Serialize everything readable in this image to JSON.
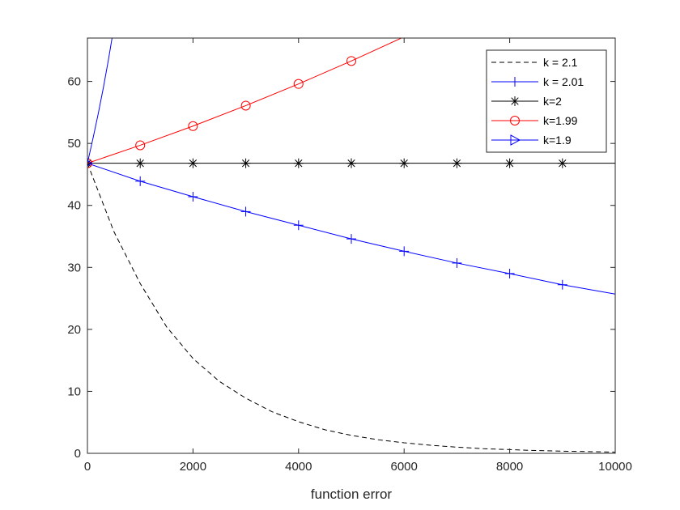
{
  "chart_data": {
    "type": "line",
    "title": "",
    "xlabel": "function error",
    "ylabel": "",
    "xlim": [
      0,
      10000
    ],
    "ylim": [
      0,
      67
    ],
    "xticks": [
      0,
      2000,
      4000,
      6000,
      8000,
      10000
    ],
    "yticks": [
      0,
      10,
      20,
      30,
      40,
      50,
      60
    ],
    "xtick_labels": [
      "0",
      "2000",
      "4000",
      "6000",
      "8000",
      "10000"
    ],
    "ytick_labels": [
      "0",
      "10",
      "20",
      "30",
      "40",
      "50",
      "60"
    ],
    "grid": false,
    "legend_position": "top-right",
    "series": [
      {
        "name": "k = 2.1",
        "color": "#000000",
        "line_style": "dashed",
        "marker": "none",
        "x": [
          0,
          500,
          1000,
          1500,
          2000,
          2500,
          3000,
          3500,
          4000,
          4500,
          5000,
          5500,
          6000,
          6500,
          7000,
          7500,
          8000,
          8500,
          9000,
          9500,
          10000
        ],
        "y": [
          46.8,
          35.8,
          27.4,
          20.4,
          15.3,
          11.6,
          8.9,
          6.7,
          5.1,
          3.8,
          2.9,
          2.2,
          1.7,
          1.3,
          1.0,
          0.75,
          0.6,
          0.45,
          0.35,
          0.28,
          0.2
        ]
      },
      {
        "name": "k = 2.01",
        "color": "#0000ff",
        "line_style": "solid",
        "marker": "plus",
        "marker_x": [
          0,
          1000,
          2000,
          3000,
          4000,
          5000,
          6000,
          7000,
          8000,
          9000
        ],
        "x": [
          0,
          1000,
          2000,
          3000,
          4000,
          5000,
          6000,
          7000,
          8000,
          9000,
          10000
        ],
        "y": [
          46.8,
          43.9,
          41.4,
          39.0,
          36.8,
          34.6,
          32.6,
          30.7,
          29.0,
          27.2,
          25.7
        ]
      },
      {
        "name": "k=2",
        "color": "#000000",
        "line_style": "solid",
        "marker": "asterisk",
        "marker_x": [
          0,
          1000,
          2000,
          3000,
          4000,
          5000,
          6000,
          7000,
          8000,
          9000
        ],
        "x": [
          0,
          10000
        ],
        "y": [
          46.8,
          46.8
        ]
      },
      {
        "name": "k=1.99",
        "color": "#ff0000",
        "line_style": "solid",
        "marker": "circle",
        "marker_x": [
          0,
          1000,
          2000,
          3000,
          4000,
          5000
        ],
        "x": [
          0,
          1000,
          2000,
          3000,
          4000,
          5000,
          6000
        ],
        "y": [
          46.8,
          49.7,
          52.8,
          56.1,
          59.6,
          63.3,
          67.2
        ]
      },
      {
        "name": "k=1.9",
        "color": "#0000ff",
        "line_style": "solid",
        "marker": "triangle-right",
        "marker_x": [
          0
        ],
        "x": [
          0,
          100,
          200,
          300,
          400,
          500,
          560
        ],
        "y": [
          46.8,
          50.6,
          54.6,
          58.9,
          63.6,
          68.7,
          72.0
        ]
      }
    ]
  }
}
